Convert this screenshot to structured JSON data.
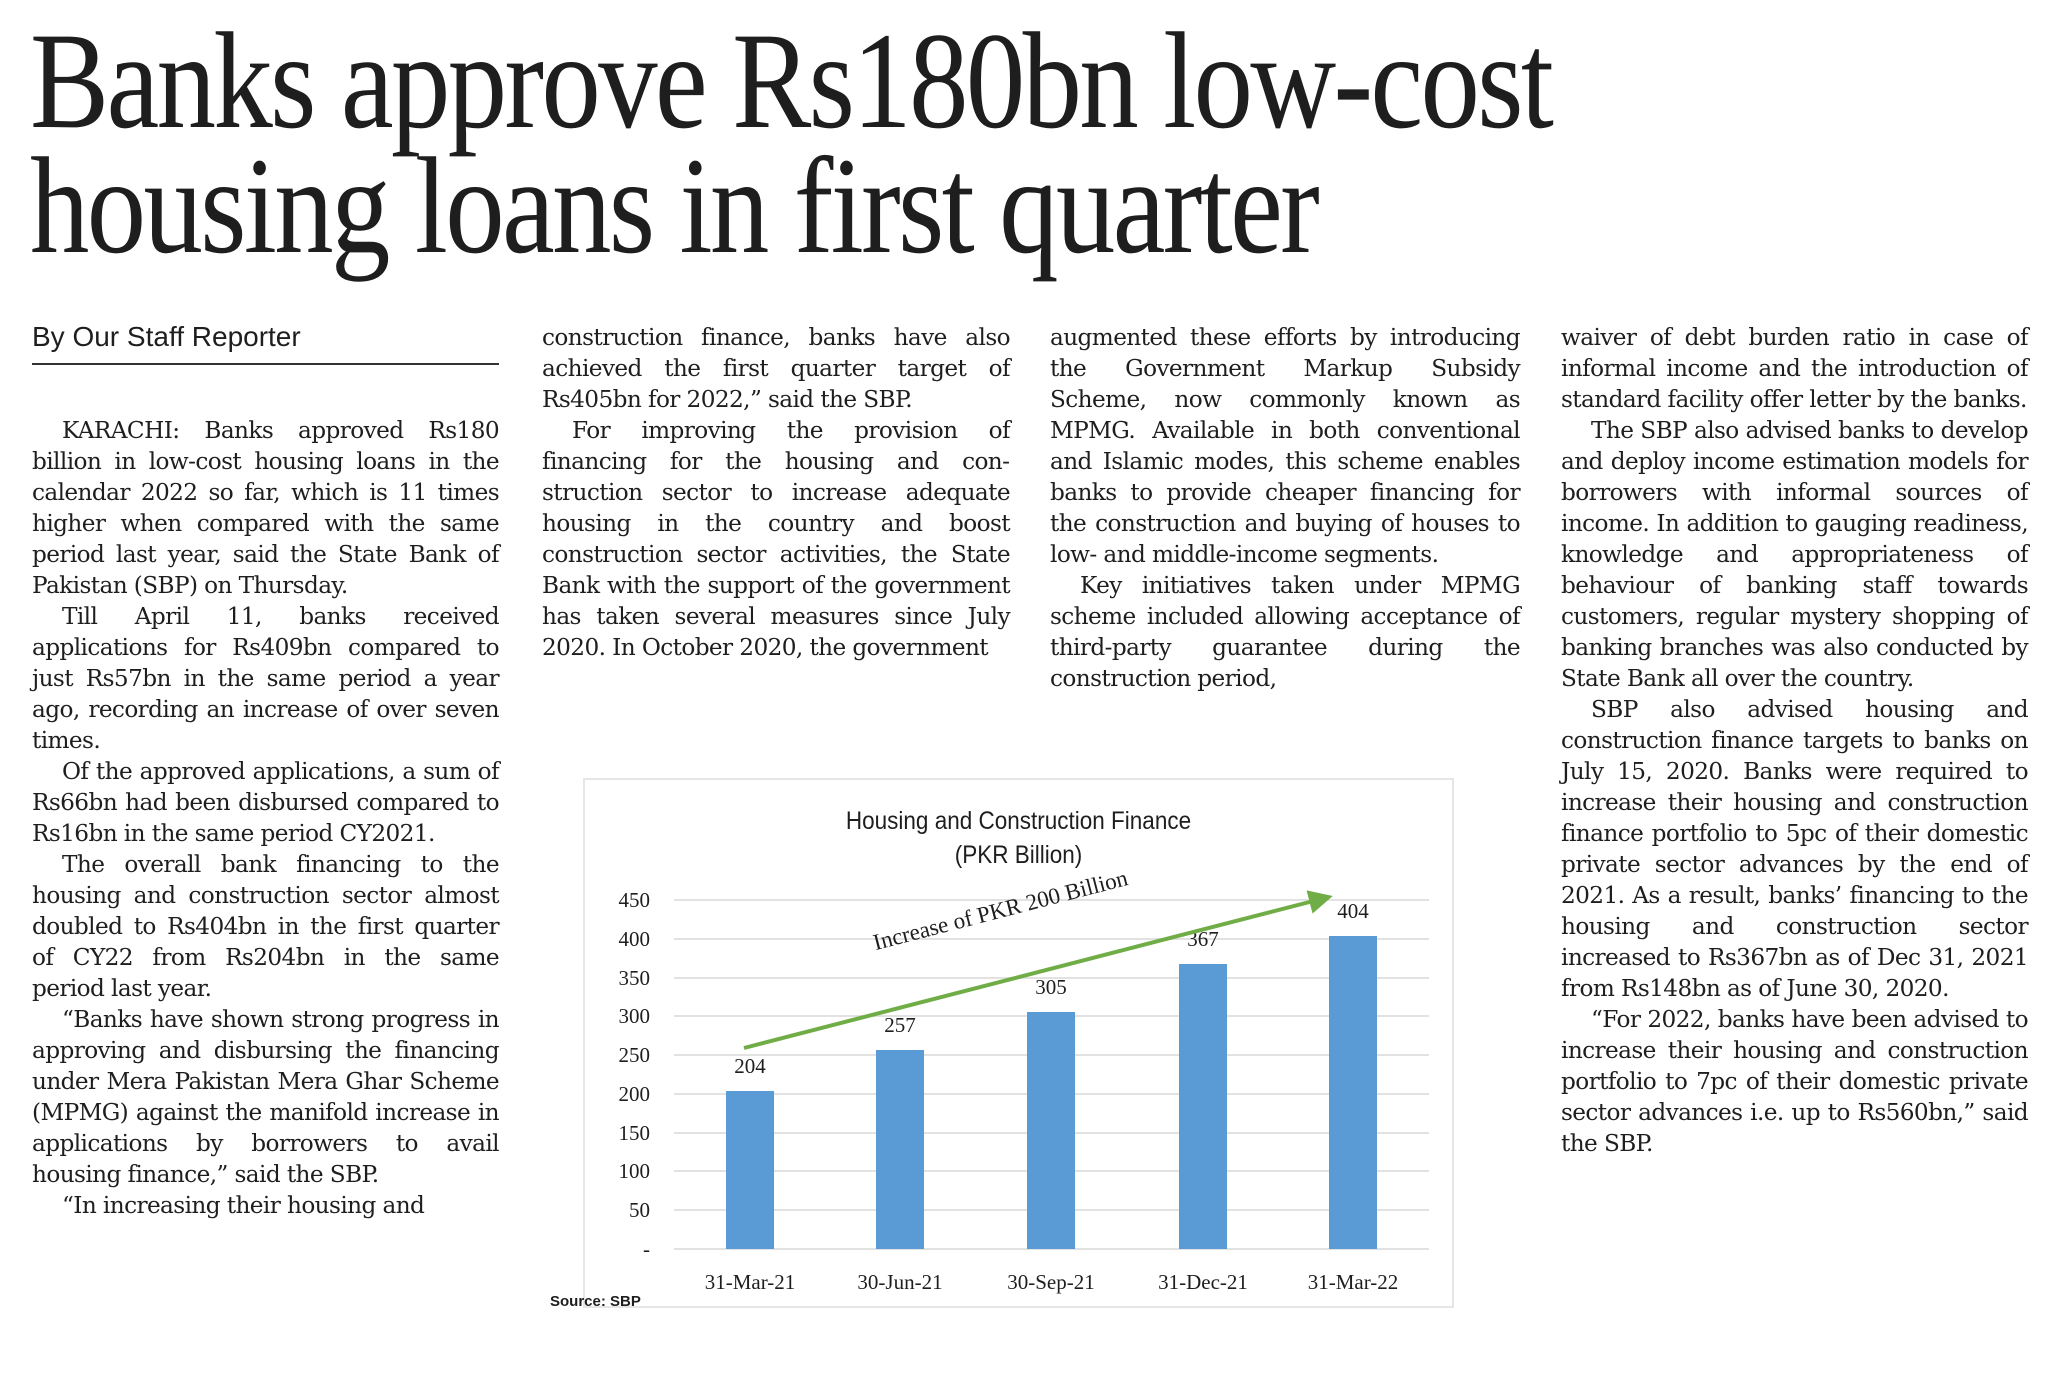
{
  "article": {
    "headline": [
      "Banks approve Rs180bn low-cost",
      "housing loans in first quarter"
    ],
    "byline": "By Our Staff Reporter",
    "columns": [
      {
        "paragraphs": [
          "KARACHI: Banks approved Rs180 billion in low-cost housing loans in the calendar 2022 so far, which is 11 times higher when com­pared with the same period last year, said the State Bank of Pakistan (SBP) on Thursday.",
          "Till April 11, banks received applications for Rs409bn compared to just Rs57bn in the same period a year ago, recording an increase of over seven times.",
          "Of the approved applications, a sum of Rs66bn had been disbursed compared to Rs16bn in the same period CY2021.",
          "The overall bank financing to the housing and construction sec­tor almost doubled to Rs404bn in the first quarter of CY22 from Rs204bn in the same period last year.",
          "“Banks have shown strong pro­gress in approving and disbursing the financing under Mera Pakistan Mera Ghar Scheme (MPMG) against the manifold increase in applications by borrowers to avail housing finance,” said the SBP.",
          "“In increasing their housing and"
        ]
      },
      {
        "paragraphs": [
          "construction finance, banks have also achieved the first quarter tar­get of Rs405bn for 2022,” said the SBP.",
          "For improving the provision of financing for the housing and con­struction sector to increase ade­quate housing in the country and boost construction sector activi­ties, the State Bank with the sup­port of the government has taken several measures since July 2020. In October 2020, the government"
        ]
      },
      {
        "paragraphs": [
          "augmented these efforts by intro­ducing the Government Markup Subsidy Scheme, now commonly known as MPMG. Available in both conventional and Islamic modes, this scheme enables banks to pro­vide cheaper financing for the con­struction and buying of houses to low- and middle-income segments.",
          "Key initiatives taken under MPMG scheme included allowing acceptance of third-party guaran­tee during the construction period,"
        ]
      },
      {
        "paragraphs": [
          "waiver of debt burden ratio in case of informal income and the intro­duction of standard facility offer letter by the banks.",
          "The SBP also advised banks to develop and deploy income estima­tion models for borrowers with informal sources of income. In addition to gauging readiness, knowledge and appropriateness of behaviour of banking staff towards customers, regular mystery shop­ping of banking branches was also conducted by State Bank all over the country.",
          "SBP also advised housing and construction finance targets to banks on July 15, 2020. Banks were required to increase their housing and construction finance portfolio to 5pc of their domestic private sec­tor advances by the end of 2021. As a result, banks’ financing to the housing and construction sector increased to Rs367bn as of Dec 31, 2021 from Rs148bn as of June 30, 2020.",
          "“For 2022, banks have been advised to increase their housing and construction portfolio to 7pc of their domestic private sector advances i.e. up to Rs560bn,” said the SBP."
        ]
      }
    ],
    "source_note": "Source: SBP"
  },
  "colors": {
    "text": "#1e1e1e",
    "bar": "#5b9bd5",
    "arrow": "#70ad47",
    "gridline": "#e2e2e2"
  },
  "chart_data": {
    "type": "bar",
    "title": "Housing and Construction Finance",
    "subtitle": "(PKR Billion)",
    "categories": [
      "31-Mar-21",
      "30-Jun-21",
      "30-Sep-21",
      "31-Dec-21",
      "31-Mar-22"
    ],
    "values": [
      204,
      257,
      305,
      367,
      404
    ],
    "data_labels": [
      "204",
      "257",
      "305",
      "367",
      "404"
    ],
    "xlabel": "",
    "ylabel": "",
    "ylim": [
      0,
      450
    ],
    "yticks": [
      0,
      50,
      100,
      150,
      200,
      250,
      300,
      350,
      400,
      450
    ],
    "ytick_labels": [
      "-",
      "50",
      "100",
      "150",
      "200",
      "250",
      "300",
      "350",
      "400",
      "450"
    ],
    "grid": true,
    "legend": null,
    "annotation": {
      "text": "Increase of PKR 200 Billion",
      "type": "arrow",
      "color": "#70ad47"
    },
    "source": "Source: SBP"
  }
}
